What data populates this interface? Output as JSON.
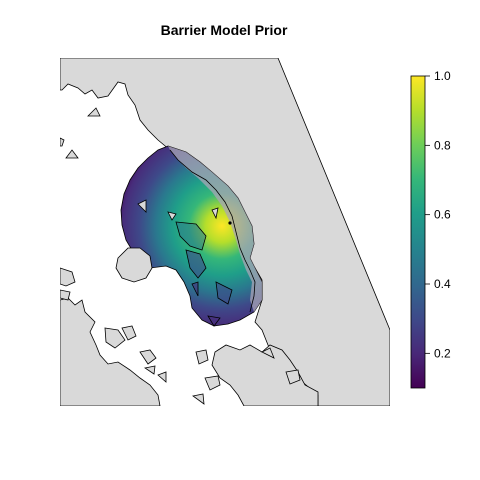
{
  "title": "Barrier Model Prior",
  "colorbar": {
    "palette": "viridis",
    "min": 0.1,
    "max": 1.0,
    "ticks": [
      {
        "value": 1.0,
        "label": "1.0"
      },
      {
        "value": 0.8,
        "label": "0.8"
      },
      {
        "value": 0.6,
        "label": "0.6"
      },
      {
        "value": 0.4,
        "label": "0.4"
      },
      {
        "value": 0.2,
        "label": "0.2"
      }
    ],
    "colors": [
      "#440154",
      "#482878",
      "#3e4989",
      "#31688e",
      "#26828e",
      "#1f9e89",
      "#35b779",
      "#6ece58",
      "#b5de2b",
      "#fde725"
    ]
  },
  "map": {
    "land_color": "#d9d9d9",
    "border_color": "#000000",
    "barrier_fill_color": "#a9a4b5",
    "peak_value": 1.0,
    "point_marker": "source-point"
  }
}
